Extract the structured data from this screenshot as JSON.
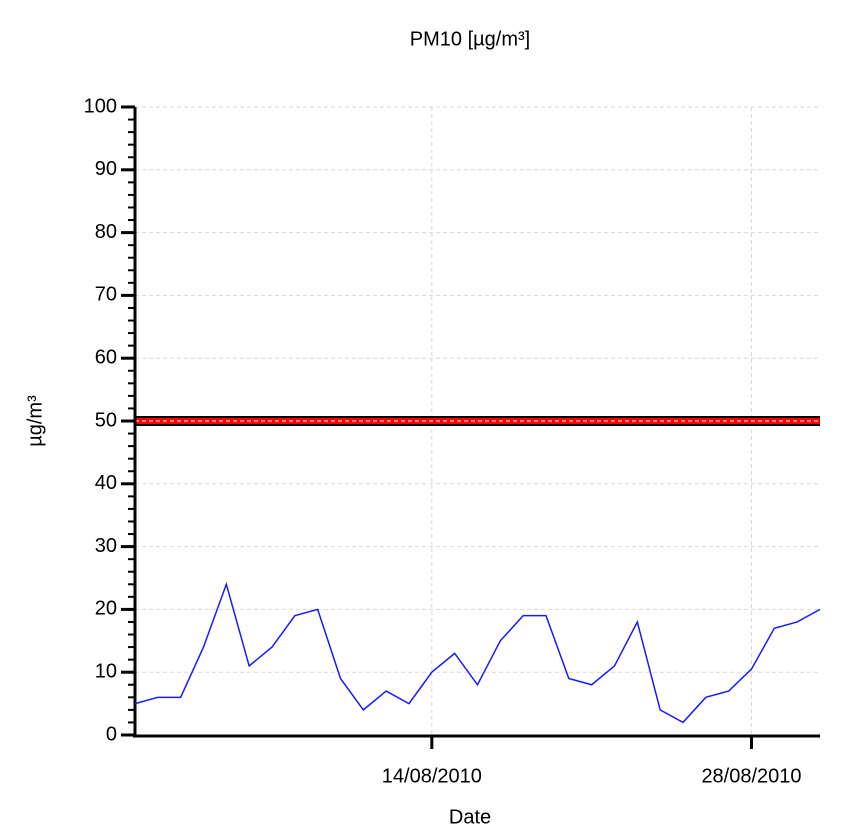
{
  "chart_data": {
    "type": "line",
    "title": "PM10 [µg/m³]",
    "x_label": "Date",
    "y_label": "µg/m³",
    "x": [
      "2010-08-01",
      "2010-08-02",
      "2010-08-03",
      "2010-08-04",
      "2010-08-05",
      "2010-08-06",
      "2010-08-07",
      "2010-08-08",
      "2010-08-09",
      "2010-08-10",
      "2010-08-11",
      "2010-08-12",
      "2010-08-13",
      "2010-08-14",
      "2010-08-15",
      "2010-08-16",
      "2010-08-17",
      "2010-08-18",
      "2010-08-19",
      "2010-08-20",
      "2010-08-21",
      "2010-08-22",
      "2010-08-23",
      "2010-08-24",
      "2010-08-25",
      "2010-08-26",
      "2010-08-27",
      "2010-08-28",
      "2010-08-29",
      "2010-08-30",
      "2010-08-31"
    ],
    "series": [
      {
        "name": "PM10",
        "color": "#1a1aff",
        "values": [
          5,
          6,
          6,
          14,
          24,
          11,
          14,
          19,
          20,
          9,
          4,
          7,
          5,
          10,
          13,
          8,
          15,
          19,
          19,
          9,
          8,
          11,
          18,
          4,
          2,
          6,
          7,
          10.5,
          17,
          18,
          20
        ]
      }
    ],
    "threshold": {
      "value": 50,
      "color": "#ff0000"
    },
    "xlim": [
      "2010-08-01",
      "2010-08-31"
    ],
    "xticks": [
      {
        "value": "2010-08-14",
        "label": "14/08/2010"
      },
      {
        "value": "2010-08-28",
        "label": "28/08/2010"
      }
    ],
    "ylim": [
      0,
      100
    ],
    "yticks": [
      0,
      10,
      20,
      30,
      40,
      50,
      60,
      70,
      80,
      90,
      100
    ],
    "yminorticks": [
      2,
      4,
      6,
      8,
      12,
      14,
      16,
      18,
      22,
      24,
      26,
      28,
      32,
      34,
      36,
      38,
      42,
      44,
      46,
      48,
      52,
      54,
      56,
      58,
      62,
      64,
      66,
      68,
      72,
      74,
      76,
      78,
      82,
      84,
      86,
      88,
      92,
      94,
      96,
      98
    ],
    "grid": true
  }
}
